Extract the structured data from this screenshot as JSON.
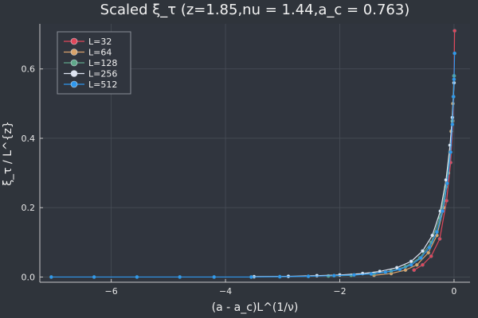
{
  "chart_data": {
    "type": "line",
    "title": "Scaled ξ_τ (z=1.85,nu = 1.44,a_c = 0.763)",
    "xlabel": "(a - a_c)L^(1/ν)",
    "ylabel": "ξ_τ / L^{z}",
    "xlim": [
      -7.25,
      0.28
    ],
    "ylim": [
      -0.015,
      0.73
    ],
    "xticks": [
      -6,
      -4,
      -2,
      0
    ],
    "xtick_labels": [
      "−6",
      "−4",
      "−2",
      "0"
    ],
    "yticks": [
      0.0,
      0.2,
      0.4,
      0.6
    ],
    "ytick_labels": [
      "0.0",
      "0.2",
      "0.4",
      "0.6"
    ],
    "grid": true,
    "legend_position": "top-left",
    "series": [
      {
        "name": "L=32",
        "color": "#e0475a",
        "points": [
          [
            -0.7,
            0.02
          ],
          [
            -0.55,
            0.035
          ],
          [
            -0.4,
            0.06
          ],
          [
            -0.25,
            0.11
          ],
          [
            -0.13,
            0.22
          ],
          [
            -0.06,
            0.33
          ],
          [
            -0.02,
            0.45
          ],
          [
            0.0,
            0.58
          ],
          [
            0.01,
            0.71
          ]
        ]
      },
      {
        "name": "L=64",
        "color": "#d9a36b",
        "points": [
          [
            -1.4,
            0.005
          ],
          [
            -1.1,
            0.01
          ],
          [
            -0.85,
            0.02
          ],
          [
            -0.65,
            0.035
          ],
          [
            -0.45,
            0.07
          ],
          [
            -0.3,
            0.12
          ],
          [
            -0.18,
            0.2
          ],
          [
            -0.1,
            0.3
          ],
          [
            -0.05,
            0.42
          ],
          [
            -0.02,
            0.5
          ],
          [
            0.0,
            0.58
          ]
        ]
      },
      {
        "name": "L=128",
        "color": "#5fa88a",
        "points": [
          [
            -2.2,
            0.003
          ],
          [
            -1.8,
            0.005
          ],
          [
            -1.4,
            0.01
          ],
          [
            -1.1,
            0.017
          ],
          [
            -0.85,
            0.03
          ],
          [
            -0.6,
            0.055
          ],
          [
            -0.4,
            0.1
          ],
          [
            -0.25,
            0.17
          ],
          [
            -0.14,
            0.26
          ],
          [
            -0.07,
            0.36
          ],
          [
            -0.03,
            0.45
          ],
          [
            -0.01,
            0.52
          ],
          [
            0.0,
            0.58
          ]
        ]
      },
      {
        "name": "L=256",
        "color": "#dfe5f2",
        "points": [
          [
            -3.5,
            0.001
          ],
          [
            -2.9,
            0.002
          ],
          [
            -2.4,
            0.004
          ],
          [
            -2.0,
            0.006
          ],
          [
            -1.6,
            0.01
          ],
          [
            -1.3,
            0.016
          ],
          [
            -1.0,
            0.027
          ],
          [
            -0.75,
            0.045
          ],
          [
            -0.55,
            0.075
          ],
          [
            -0.38,
            0.12
          ],
          [
            -0.24,
            0.19
          ],
          [
            -0.14,
            0.28
          ],
          [
            -0.07,
            0.38
          ],
          [
            -0.03,
            0.46
          ],
          [
            -0.01,
            0.52
          ],
          [
            0.0,
            0.56
          ]
        ]
      },
      {
        "name": "L=512",
        "color": "#2f98ee",
        "points": [
          [
            -7.05,
            0.0
          ],
          [
            -6.3,
            0.0
          ],
          [
            -5.55,
            0.0
          ],
          [
            -4.8,
            0.0
          ],
          [
            -4.2,
            0.0
          ],
          [
            -3.55,
            0.0
          ],
          [
            -3.05,
            0.001
          ],
          [
            -2.55,
            0.002
          ],
          [
            -2.1,
            0.004
          ],
          [
            -1.75,
            0.006
          ],
          [
            -1.45,
            0.009
          ],
          [
            -1.2,
            0.014
          ],
          [
            -0.95,
            0.022
          ],
          [
            -0.75,
            0.035
          ],
          [
            -0.58,
            0.055
          ],
          [
            -0.43,
            0.085
          ],
          [
            -0.3,
            0.13
          ],
          [
            -0.2,
            0.19
          ],
          [
            -0.12,
            0.27
          ],
          [
            -0.06,
            0.36
          ],
          [
            -0.03,
            0.44
          ],
          [
            -0.01,
            0.52
          ],
          [
            0.0,
            0.57
          ],
          [
            0.01,
            0.645
          ]
        ]
      }
    ]
  }
}
